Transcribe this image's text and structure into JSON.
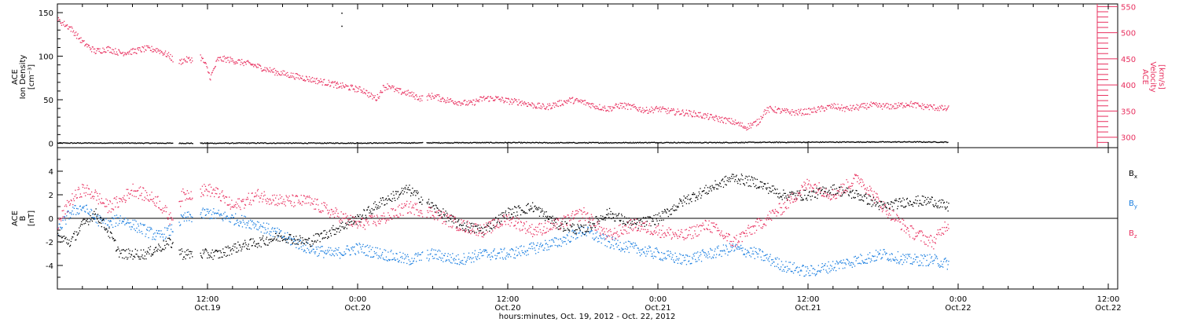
{
  "colors": {
    "black": "#000000",
    "pink": "#e8305f",
    "blue": "#1a7ee0",
    "axis": "#000000"
  },
  "x_axis": {
    "title": "hours:minutes, Oct. 19, 2012 - Oct. 22, 2012",
    "ticks": [
      {
        "hours": 12,
        "time": "12:00",
        "date": "Oct.19"
      },
      {
        "hours": 24,
        "time": "0:00",
        "date": "Oct.20"
      },
      {
        "hours": 36,
        "time": "12:00",
        "date": "Oct.20"
      },
      {
        "hours": 48,
        "time": "0:00",
        "date": "Oct.21"
      },
      {
        "hours": 60,
        "time": "12:00",
        "date": "Oct.21"
      },
      {
        "hours": 72,
        "time": "0:00",
        "date": "Oct.22"
      },
      {
        "hours": 84,
        "time": "12:00",
        "date": "Oct.22"
      }
    ]
  },
  "chart_data": [
    {
      "type": "scatter",
      "x_range_hours": [
        0,
        84
      ],
      "left_axis": {
        "label_lines": [
          "ACE",
          "Ion Density"
        ],
        "unit": "[cm⁻³]",
        "ylim": [
          -5,
          160
        ],
        "ticks": [
          0,
          50,
          100,
          150
        ]
      },
      "right_axis": {
        "label_lines": [
          "ACE",
          "Velocity"
        ],
        "unit": "[km/s]",
        "ylim": [
          280,
          555
        ],
        "ticks": [
          300,
          350,
          400,
          450,
          500,
          550
        ]
      },
      "series": [
        {
          "axis": "left",
          "color": "black",
          "segments": [
            [
              0,
              9.2
            ],
            [
              9.7,
              10.8
            ],
            [
              11.4,
              29.2
            ],
            [
              29.5,
              71.2
            ]
          ],
          "points": [
            [
              0,
              0.8
            ],
            [
              4,
              0.9
            ],
            [
              8,
              0.7
            ],
            [
              12,
              0.6
            ],
            [
              16,
              0.8
            ],
            [
              20,
              0.7
            ],
            [
              24,
              0.8
            ],
            [
              28,
              1.0
            ],
            [
              32,
              1.2
            ],
            [
              36,
              1.3
            ],
            [
              40,
              1.1
            ],
            [
              44,
              1.2
            ],
            [
              48,
              1.4
            ],
            [
              52,
              1.3
            ],
            [
              56,
              1.6
            ],
            [
              60,
              1.8
            ],
            [
              64,
              2.0
            ],
            [
              68,
              2.1
            ],
            [
              71,
              1.9
            ]
          ],
          "outliers": [
            [
              22.7,
              150
            ],
            [
              22.7,
              135
            ]
          ]
        },
        {
          "axis": "right",
          "color": "pink",
          "segments": [
            [
              0,
              9.2
            ],
            [
              9.7,
              10.8
            ],
            [
              11.4,
              29.2
            ],
            [
              29.5,
              71.2
            ]
          ],
          "points": [
            [
              0,
              525
            ],
            [
              1,
              510
            ],
            [
              2,
              482
            ],
            [
              3,
              465
            ],
            [
              4,
              470
            ],
            [
              5,
              462
            ],
            [
              6,
              465
            ],
            [
              7,
              470
            ],
            [
              8,
              468
            ],
            [
              9,
              455
            ],
            [
              9.5,
              440
            ],
            [
              10,
              448
            ],
            [
              10.8,
              450
            ],
            [
              11.4,
              455
            ],
            [
              11.8,
              440
            ],
            [
              12.2,
              415
            ],
            [
              12.8,
              450
            ],
            [
              13.5,
              450
            ],
            [
              14.5,
              445
            ],
            [
              15.5,
              440
            ],
            [
              16.5,
              432
            ],
            [
              17.5,
              425
            ],
            [
              18.5,
              420
            ],
            [
              19.5,
              415
            ],
            [
              20.5,
              410
            ],
            [
              21.5,
              405
            ],
            [
              22.5,
              400
            ],
            [
              23.5,
              395
            ],
            [
              24.5,
              390
            ],
            [
              25,
              380
            ],
            [
              25.5,
              375
            ],
            [
              26,
              395
            ],
            [
              26.5,
              400
            ],
            [
              27,
              390
            ],
            [
              28,
              385
            ],
            [
              29,
              375
            ],
            [
              30,
              380
            ],
            [
              31,
              372
            ],
            [
              32,
              368
            ],
            [
              33,
              365
            ],
            [
              34,
              375
            ],
            [
              35,
              375
            ],
            [
              36,
              370
            ],
            [
              37,
              368
            ],
            [
              38,
              362
            ],
            [
              39,
              358
            ],
            [
              40,
              365
            ],
            [
              41,
              372
            ],
            [
              42,
              368
            ],
            [
              43,
              360
            ],
            [
              44,
              355
            ],
            [
              45,
              362
            ],
            [
              46,
              358
            ],
            [
              47,
              352
            ],
            [
              48,
              355
            ],
            [
              49,
              350
            ],
            [
              50,
              348
            ],
            [
              51,
              345
            ],
            [
              52,
              340
            ],
            [
              53,
              335
            ],
            [
              54,
              330
            ],
            [
              55,
              320
            ],
            [
              56,
              330
            ],
            [
              56.5,
              350
            ],
            [
              57,
              355
            ],
            [
              58,
              350
            ],
            [
              59,
              348
            ],
            [
              60,
              350
            ],
            [
              61,
              355
            ],
            [
              62,
              360
            ],
            [
              63,
              355
            ],
            [
              64,
              358
            ],
            [
              65,
              362
            ],
            [
              66,
              360
            ],
            [
              67,
              360
            ],
            [
              68,
              365
            ],
            [
              69,
              360
            ],
            [
              70,
              358
            ],
            [
              71,
              355
            ]
          ],
          "outliers": [
            [
              22.3,
              395
            ]
          ]
        }
      ]
    },
    {
      "type": "scatter",
      "x_range_hours": [
        0,
        84
      ],
      "left_axis": {
        "label_lines": [
          "ACE",
          "B"
        ],
        "unit": "[nT]",
        "ylim": [
          -6,
          6
        ],
        "ticks": [
          -4,
          -2,
          0,
          2,
          4
        ],
        "zero_line": true
      },
      "legend": [
        {
          "label": "B",
          "sub": "x",
          "color": "black"
        },
        {
          "label": "B",
          "sub": "y",
          "color": "blue"
        },
        {
          "label": "B",
          "sub": "z",
          "color": "pink"
        }
      ],
      "series": [
        {
          "color": "black",
          "segments": [
            [
              0,
              9.2
            ],
            [
              9.7,
              10.8
            ],
            [
              11.4,
              29.2
            ],
            [
              29.5,
              71.2
            ]
          ],
          "points": [
            [
              0,
              -1.5
            ],
            [
              1,
              -2
            ],
            [
              2,
              -0.5
            ],
            [
              3,
              0.5
            ],
            [
              4,
              -1
            ],
            [
              5,
              -3
            ],
            [
              6,
              -3
            ],
            [
              7,
              -3
            ],
            [
              8,
              -2.5
            ],
            [
              9,
              -2
            ],
            [
              10,
              -3
            ],
            [
              12,
              -3
            ],
            [
              13,
              -3
            ],
            [
              14,
              -2.5
            ],
            [
              16,
              -2
            ],
            [
              18,
              -1.5
            ],
            [
              20,
              -2
            ],
            [
              22,
              -1
            ],
            [
              24,
              0
            ],
            [
              26,
              1.5
            ],
            [
              28,
              2.5
            ],
            [
              30,
              1
            ],
            [
              32,
              -0.5
            ],
            [
              34,
              -1
            ],
            [
              36,
              0.5
            ],
            [
              38,
              1
            ],
            [
              40,
              -0.5
            ],
            [
              42,
              -1
            ],
            [
              44,
              0.5
            ],
            [
              46,
              -0.5
            ],
            [
              48,
              0
            ],
            [
              50,
              1.5
            ],
            [
              52,
              2.5
            ],
            [
              54,
              3.5
            ],
            [
              56,
              3
            ],
            [
              58,
              2
            ],
            [
              60,
              2
            ],
            [
              62,
              2.5
            ],
            [
              64,
              2
            ],
            [
              66,
              1
            ],
            [
              68,
              1.5
            ],
            [
              70,
              1.5
            ],
            [
              71,
              1
            ]
          ]
        },
        {
          "color": "blue",
          "segments": [
            [
              0,
              9.2
            ],
            [
              9.7,
              10.8
            ],
            [
              11.4,
              29.2
            ],
            [
              29.5,
              71.2
            ]
          ],
          "points": [
            [
              0,
              -1
            ],
            [
              1,
              0.5
            ],
            [
              2,
              1
            ],
            [
              3,
              0
            ],
            [
              4,
              -0.5
            ],
            [
              5,
              0
            ],
            [
              6,
              -0.5
            ],
            [
              7,
              -1
            ],
            [
              8,
              -1.5
            ],
            [
              9,
              -1
            ],
            [
              10,
              0
            ],
            [
              12,
              0.5
            ],
            [
              14,
              0
            ],
            [
              16,
              -0.5
            ],
            [
              18,
              -1.5
            ],
            [
              20,
              -2.5
            ],
            [
              22,
              -3
            ],
            [
              24,
              -2.5
            ],
            [
              26,
              -3
            ],
            [
              28,
              -3.5
            ],
            [
              30,
              -3
            ],
            [
              32,
              -3.5
            ],
            [
              34,
              -3
            ],
            [
              36,
              -3
            ],
            [
              38,
              -2.5
            ],
            [
              40,
              -2
            ],
            [
              42,
              -1
            ],
            [
              44,
              -2
            ],
            [
              46,
              -2.5
            ],
            [
              48,
              -3
            ],
            [
              50,
              -3.5
            ],
            [
              52,
              -3
            ],
            [
              54,
              -2.5
            ],
            [
              56,
              -3
            ],
            [
              58,
              -4
            ],
            [
              60,
              -4.5
            ],
            [
              62,
              -4
            ],
            [
              64,
              -3.5
            ],
            [
              66,
              -3
            ],
            [
              68,
              -3.5
            ],
            [
              70,
              -3.5
            ],
            [
              71,
              -3.8
            ]
          ]
        },
        {
          "color": "pink",
          "segments": [
            [
              0,
              9.2
            ],
            [
              9.7,
              10.8
            ],
            [
              11.4,
              29.2
            ],
            [
              29.5,
              71.2
            ]
          ],
          "points": [
            [
              0,
              -0.5
            ],
            [
              1,
              1.5
            ],
            [
              2,
              2.5
            ],
            [
              3,
              2
            ],
            [
              4,
              1
            ],
            [
              5,
              1.5
            ],
            [
              6,
              2.5
            ],
            [
              7,
              2
            ],
            [
              8,
              1.5
            ],
            [
              9,
              0
            ],
            [
              10,
              2
            ],
            [
              12,
              2.5
            ],
            [
              13,
              2
            ],
            [
              14,
              1
            ],
            [
              16,
              2
            ],
            [
              18,
              1.5
            ],
            [
              20,
              1.5
            ],
            [
              22,
              0.5
            ],
            [
              24,
              -0.5
            ],
            [
              26,
              0
            ],
            [
              28,
              1
            ],
            [
              30,
              0.5
            ],
            [
              32,
              -0.5
            ],
            [
              34,
              -1
            ],
            [
              36,
              0
            ],
            [
              38,
              -1
            ],
            [
              40,
              -0.5
            ],
            [
              42,
              0.5
            ],
            [
              44,
              -1.5
            ],
            [
              46,
              -0.5
            ],
            [
              48,
              -1
            ],
            [
              50,
              -1.5
            ],
            [
              52,
              -0.5
            ],
            [
              54,
              -2
            ],
            [
              56,
              -0.5
            ],
            [
              58,
              1
            ],
            [
              60,
              3
            ],
            [
              62,
              2
            ],
            [
              64,
              3.5
            ],
            [
              66,
              1
            ],
            [
              68,
              -1
            ],
            [
              70,
              -2
            ],
            [
              71,
              -0.5
            ]
          ]
        }
      ]
    }
  ]
}
